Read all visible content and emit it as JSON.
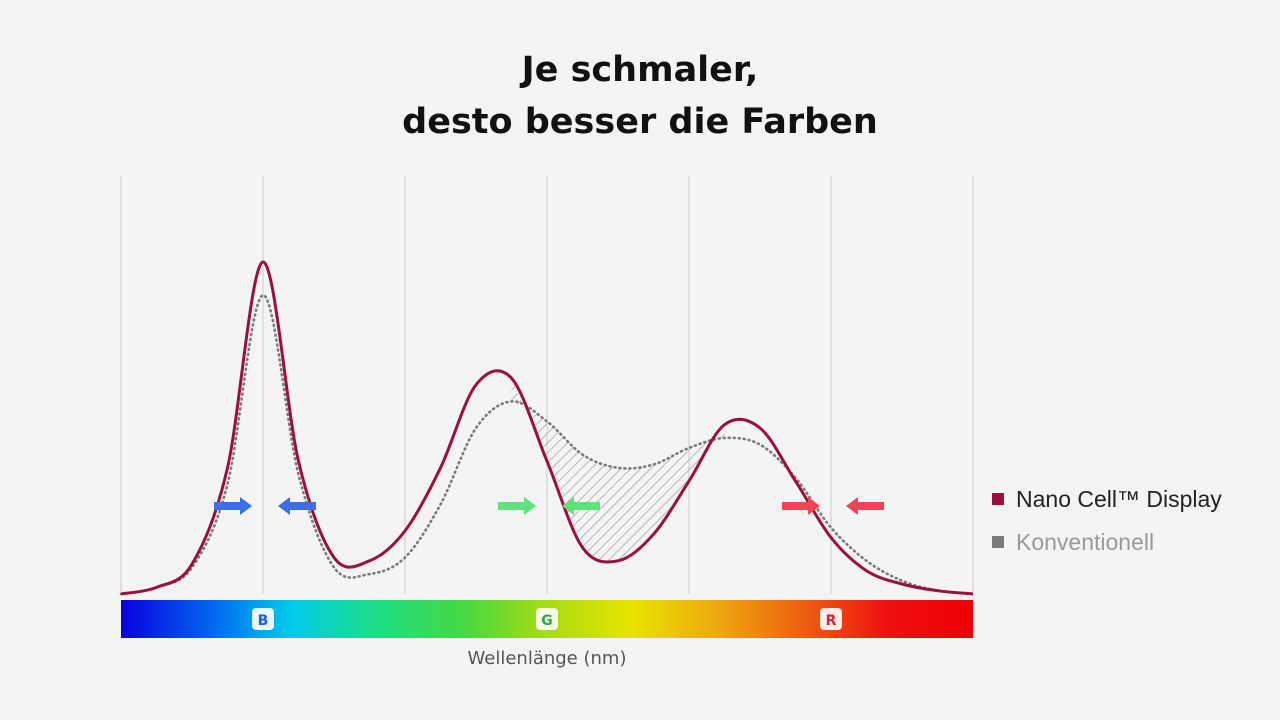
{
  "chart_data": {
    "type": "line",
    "title_lines": [
      "Je schmaler,",
      "desto besser die Farben"
    ],
    "xlabel": "Wellenlänge (nm)",
    "ylabel": "",
    "grid": true,
    "legend_position": "right",
    "band_labels": [
      {
        "letter": "B",
        "color": "#1f5fd8"
      },
      {
        "letter": "G",
        "color": "#2ea84a"
      },
      {
        "letter": "R",
        "color": "#d4223a"
      }
    ],
    "arrow_colors": [
      "#3a6fe8",
      "#5ee27a",
      "#ee4455"
    ],
    "series": [
      {
        "name": "Nano Cell™ Display",
        "color": "#9c1040",
        "style": "solid",
        "x": [
          0,
          0.25,
          0.5,
          0.75,
          1,
          1.25,
          1.5,
          1.75,
          2,
          2.25,
          2.5,
          2.75,
          3,
          3.25,
          3.5,
          3.75,
          4,
          4.25,
          4.5,
          4.75,
          5,
          5.25,
          5.5,
          5.75,
          6
        ],
        "y": [
          0,
          2,
          9,
          38,
          100,
          40,
          11,
          10,
          19,
          38,
          63,
          65,
          40,
          14,
          10,
          18,
          34,
          51,
          50,
          34,
          17,
          7,
          3,
          1,
          0
        ]
      },
      {
        "name": "Konventionell",
        "color": "#7a7a7a",
        "style": "dotted",
        "x": [
          0,
          0.25,
          0.5,
          0.75,
          1,
          1.25,
          1.5,
          1.75,
          2,
          2.25,
          2.5,
          2.75,
          3,
          3.25,
          3.5,
          3.75,
          4,
          4.25,
          4.5,
          4.75,
          5,
          5.25,
          5.5,
          5.75,
          6
        ],
        "y": [
          0,
          2,
          8,
          33,
          90,
          36,
          8,
          6,
          11,
          27,
          50,
          58,
          52,
          42,
          38,
          39,
          44,
          47,
          45,
          35,
          20,
          10,
          4,
          1,
          0
        ]
      }
    ],
    "spectrum_colors": [
      "#0a00e0",
      "#0060f0",
      "#00ccea",
      "#1ede84",
      "#44d844",
      "#a8dc10",
      "#e8e400",
      "#eea810",
      "#ee6010",
      "#ee1010",
      "#ee0000"
    ]
  }
}
